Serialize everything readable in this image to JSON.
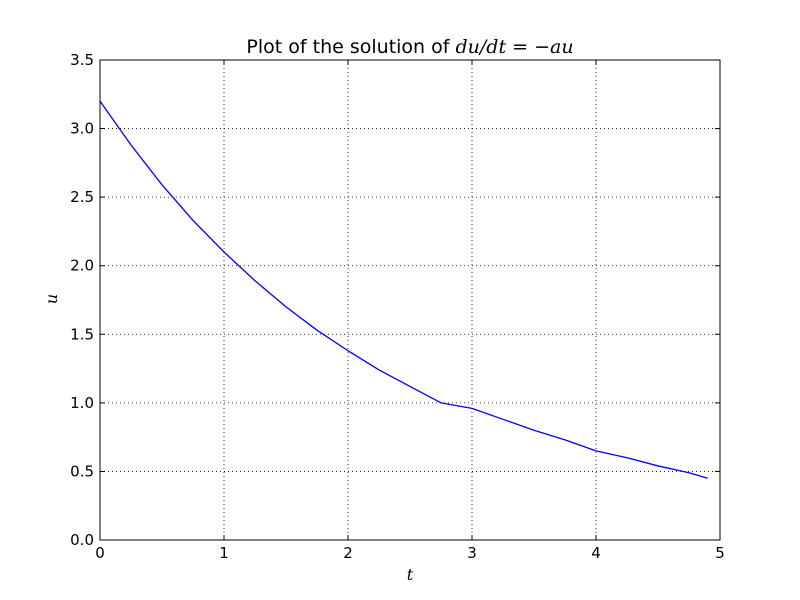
{
  "chart_data": {
    "type": "line",
    "title_text": "Plot of the solution of ",
    "title_math": "du/dt = −au",
    "xlabel": "t",
    "ylabel": "u",
    "xlim": [
      0,
      5
    ],
    "ylim": [
      0,
      3.5
    ],
    "xticks": [
      "0",
      "1",
      "2",
      "3",
      "4",
      "5"
    ],
    "yticks": [
      "0.0",
      "0.5",
      "1.0",
      "1.5",
      "2.0",
      "2.5",
      "3.0",
      "3.5"
    ],
    "grid": true,
    "series": [
      {
        "color": "#0000ff",
        "x": [
          0,
          0.25,
          0.5,
          0.75,
          1.0,
          1.25,
          1.5,
          1.75,
          2.0,
          2.25,
          2.5,
          2.75,
          3.0,
          3.25,
          3.5,
          3.75,
          4.0,
          4.25,
          4.5,
          4.75,
          4.9
        ],
        "y": [
          3.2,
          2.88,
          2.59,
          2.33,
          2.1,
          1.89,
          1.7,
          1.53,
          1.38,
          1.24,
          1.12,
          1.0,
          0.96,
          0.88,
          0.8,
          0.73,
          0.65,
          0.6,
          0.54,
          0.49,
          0.45
        ]
      }
    ]
  }
}
